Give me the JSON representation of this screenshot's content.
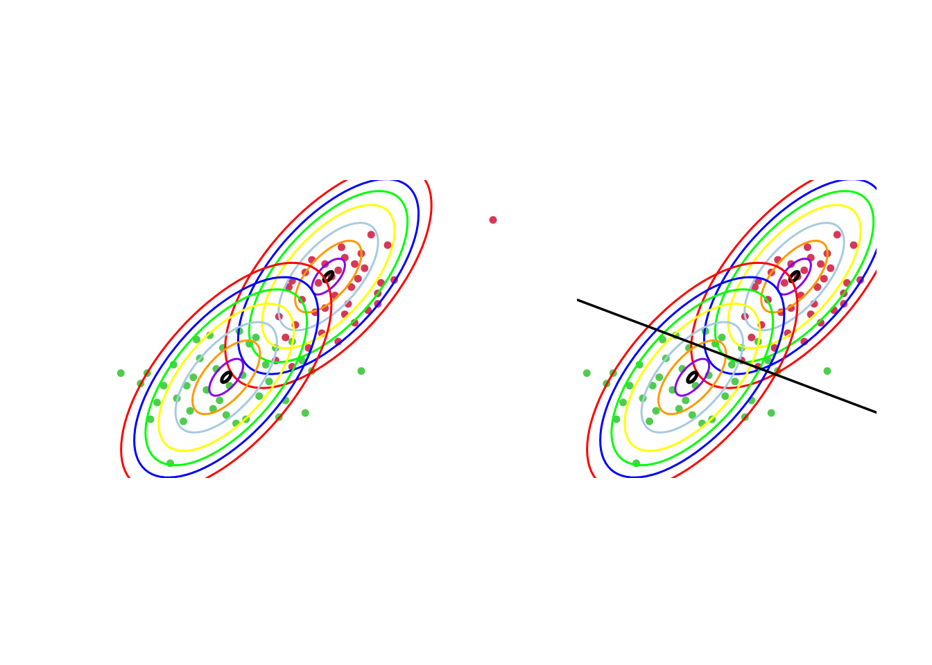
{
  "chart_data": [
    {
      "type": "scatter",
      "panel": "left",
      "title": "",
      "xlabel": "",
      "ylabel": "",
      "axes_visible": false,
      "grid": false,
      "xlim": [
        -4.5,
        7.5
      ],
      "ylim": [
        -3.7,
        3.4
      ],
      "contour_levels": [
        "red",
        "blue",
        "lime",
        "yellow",
        "lightblue",
        "orange",
        "purple",
        "black"
      ],
      "contour_scales": [
        2.8,
        2.45,
        2.15,
        1.8,
        1.35,
        0.9,
        0.45,
        0.12
      ],
      "clusters": [
        {
          "color": "#d6385a",
          "mean": [
            2.1,
            1.1
          ],
          "covariance": [
            [
              1.25,
              0.68
            ],
            [
              0.68,
              0.9
            ]
          ],
          "points": [
            [
              7.1,
              2.45
            ],
            [
              3.4,
              2.1
            ],
            [
              3.9,
              1.85
            ],
            [
              4.1,
              1.02
            ],
            [
              3.2,
              1.3
            ],
            [
              3.6,
              0.7
            ],
            [
              2.9,
              1.4
            ],
            [
              2.6,
              1.55
            ],
            [
              3.0,
              1.05
            ],
            [
              2.8,
              0.85
            ],
            [
              2.4,
              1.25
            ],
            [
              2.2,
              1.1
            ],
            [
              2.0,
              1.4
            ],
            [
              1.6,
              1.5
            ],
            [
              1.4,
              1.2
            ],
            [
              1.8,
              0.95
            ],
            [
              2.3,
              0.65
            ],
            [
              2.0,
              0.35
            ],
            [
              1.7,
              0.25
            ],
            [
              1.3,
              0.55
            ],
            [
              0.9,
              0.85
            ],
            [
              0.6,
              0.15
            ],
            [
              1.1,
              -0.05
            ],
            [
              2.6,
              0.2
            ],
            [
              2.9,
              0.0
            ],
            [
              3.3,
              0.3
            ],
            [
              3.6,
              0.45
            ],
            [
              1.9,
              -0.25
            ],
            [
              2.4,
              -0.45
            ],
            [
              1.5,
              -0.6
            ],
            [
              0.8,
              -0.35
            ],
            [
              0.5,
              -0.9
            ],
            [
              1.0,
              -1.05
            ],
            [
              2.5,
              1.8
            ],
            [
              3.1,
              1.65
            ],
            [
              1.0,
              1.0
            ],
            [
              2.7,
              0.45
            ],
            [
              3.7,
              0.95
            ]
          ]
        },
        {
          "color": "#4fcc4f",
          "mean": [
            -1.0,
            -1.3
          ],
          "covariance": [
            [
              1.3,
              0.7
            ],
            [
              0.7,
              0.95
            ]
          ],
          "points": [
            [
              -4.2,
              -1.2
            ],
            [
              -3.6,
              -1.45
            ],
            [
              -3.3,
              -2.3
            ],
            [
              -3.1,
              -1.9
            ],
            [
              -2.9,
              -1.5
            ],
            [
              -2.6,
              -1.0
            ],
            [
              -2.5,
              -1.8
            ],
            [
              -2.3,
              -2.35
            ],
            [
              -2.0,
              -1.3
            ],
            [
              -1.8,
              -0.85
            ],
            [
              -1.6,
              -1.6
            ],
            [
              -1.4,
              -2.05
            ],
            [
              -1.3,
              -1.1
            ],
            [
              -1.1,
              -0.6
            ],
            [
              -0.9,
              -1.5
            ],
            [
              -0.7,
              -2.4
            ],
            [
              -0.5,
              -1.25
            ],
            [
              -0.3,
              -0.5
            ],
            [
              0.0,
              -1.75
            ],
            [
              0.2,
              -1.0
            ],
            [
              0.5,
              -0.6
            ],
            [
              0.8,
              -1.85
            ],
            [
              1.0,
              -0.45
            ],
            [
              1.3,
              -0.9
            ],
            [
              -0.1,
              -0.35
            ],
            [
              -1.0,
              -2.2
            ],
            [
              -2.1,
              -2.1
            ],
            [
              -1.9,
              -0.4
            ],
            [
              -0.6,
              -0.2
            ],
            [
              1.6,
              -1.15
            ],
            [
              3.1,
              -1.15
            ],
            [
              -2.7,
              -3.35
            ],
            [
              0.6,
              -2.25
            ],
            [
              -3.4,
              -1.2
            ],
            [
              -1.2,
              -1.85
            ],
            [
              -2.2,
              -1.5
            ],
            [
              0.3,
              -1.4
            ],
            [
              1.4,
              -2.15
            ],
            [
              -0.4,
              -2.3
            ],
            [
              -1.5,
              -0.3
            ]
          ]
        }
      ]
    },
    {
      "type": "scatter",
      "panel": "right",
      "title": "",
      "xlabel": "",
      "ylabel": "",
      "axes_visible": false,
      "grid": false,
      "xlim": [
        -4.5,
        7.5
      ],
      "ylim": [
        -3.7,
        3.4
      ],
      "same_data_as_left": true,
      "decision_boundary": {
        "color": "#000000",
        "x": [
          -4.5,
          7.5
        ],
        "y": [
          0.55,
          -3.0
        ]
      }
    }
  ]
}
